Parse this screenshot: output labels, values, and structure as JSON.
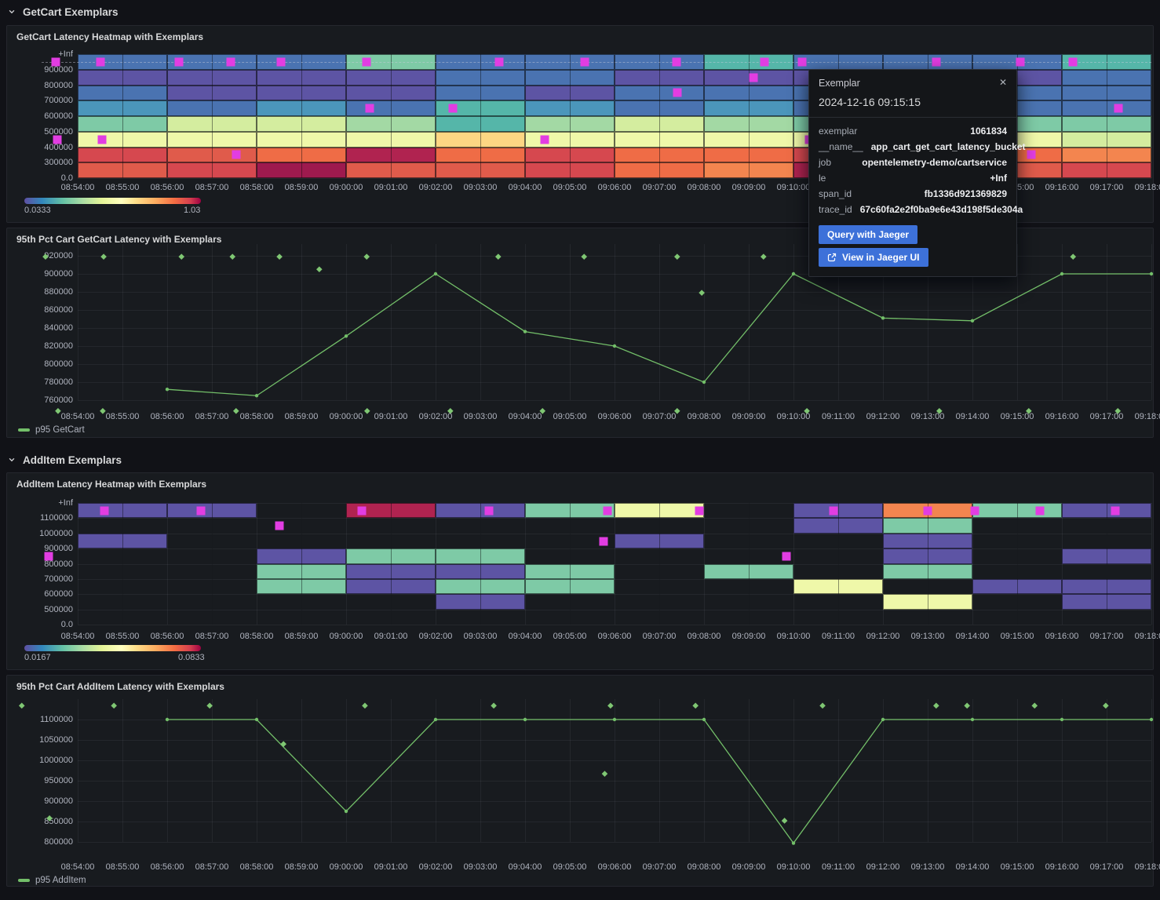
{
  "sections": [
    {
      "title": "GetCart Exemplars"
    },
    {
      "title": "AddItem Exemplars"
    }
  ],
  "colors": {
    "accent_blue": "#3d71d9",
    "exemplar_magenta": "#e23de2",
    "series_green": "#73bf69",
    "diamond_green": "#7fc773"
  },
  "palette": {
    "purple": "#5d54a4",
    "blue": "#4a73b1",
    "steel": "#4b96bb",
    "teal": "#55b6a9",
    "green": "#7ecaa6",
    "lightgreen": "#a3d9a4",
    "yellowgreen": "#d4ed9f",
    "paleyellow": "#eff8a9",
    "amber": "#fdd683",
    "lightorange": "#f3854f",
    "orange": "#ef6c46",
    "redorange": "#e05b4b",
    "red": "#d6484f",
    "crimson": "#b02350",
    "darkcrimson": "#9e1a4e"
  },
  "time_ticks": [
    "08:54:00",
    "08:55:00",
    "08:56:00",
    "08:57:00",
    "08:58:00",
    "08:59:00",
    "09:00:00",
    "09:01:00",
    "09:02:00",
    "09:03:00",
    "09:04:00",
    "09:05:00",
    "09:06:00",
    "09:07:00",
    "09:08:00",
    "09:09:00",
    "09:10:00",
    "09:11:00",
    "09:12:00",
    "09:13:00",
    "09:14:00",
    "09:15:00",
    "09:16:00",
    "09:17:00",
    "09:18:00"
  ],
  "heatmap1": {
    "title": "GetCart Latency Heatmap with Exemplars",
    "y_ticks": [
      "+Inf",
      "900000",
      "800000",
      "700000",
      "600000",
      "500000",
      "400000",
      "300000",
      "0.0"
    ],
    "legend": {
      "min": "0.0333",
      "max": "1.03"
    },
    "rows": [
      {
        "band": "900000-+Inf",
        "colors": [
          "blue",
          "blue",
          "blue",
          "green",
          "blue",
          "blue",
          "blue",
          "teal",
          "blue",
          "blue",
          "blue",
          "teal"
        ]
      },
      {
        "band": "800000-900000",
        "colors": [
          "purple",
          "purple",
          "purple",
          "purple",
          "blue",
          "blue",
          "purple",
          "purple",
          "purple",
          "purple",
          "purple",
          "blue"
        ]
      },
      {
        "band": "700000-800000",
        "colors": [
          "blue",
          "purple",
          "purple",
          "purple",
          "blue",
          "purple",
          "blue",
          "blue",
          "blue",
          "blue",
          "blue",
          "blue"
        ]
      },
      {
        "band": "600000-700000",
        "colors": [
          "steel",
          "blue",
          "steel",
          "blue",
          "teal",
          "steel",
          "blue",
          "steel",
          "blue",
          "blue",
          "blue",
          "blue"
        ]
      },
      {
        "band": "500000-600000",
        "colors": [
          "green",
          "yellowgreen",
          "yellowgreen",
          "lightgreen",
          "teal",
          "lightgreen",
          "yellowgreen",
          "lightgreen",
          "green",
          "green",
          "green",
          "green"
        ]
      },
      {
        "band": "400000-500000",
        "colors": [
          "paleyellow",
          "paleyellow",
          "paleyellow",
          "paleyellow",
          "amber",
          "paleyellow",
          "paleyellow",
          "paleyellow",
          "paleyellow",
          "paleyellow",
          "paleyellow",
          "yellowgreen"
        ]
      },
      {
        "band": "300000-400000",
        "colors": [
          "red",
          "redorange",
          "orange",
          "crimson",
          "orange",
          "red",
          "orange",
          "orange",
          "red",
          "redorange",
          "orange",
          "lightorange"
        ]
      },
      {
        "band": "0-300000",
        "colors": [
          "redorange",
          "red",
          "darkcrimson",
          "redorange",
          "redorange",
          "red",
          "orange",
          "lightorange",
          "crimson",
          "red",
          "redorange",
          "red"
        ]
      }
    ],
    "markers": [
      {
        "m": -0.49,
        "r": 0
      },
      {
        "m": 0.51,
        "r": 0
      },
      {
        "m": 2.26,
        "r": 0
      },
      {
        "m": 3.42,
        "r": 0
      },
      {
        "m": 4.54,
        "r": 0
      },
      {
        "m": 6.46,
        "r": 0
      },
      {
        "m": 9.42,
        "r": 0
      },
      {
        "m": 11.33,
        "r": 0
      },
      {
        "m": 13.39,
        "r": 0
      },
      {
        "m": 15.35,
        "r": 0
      },
      {
        "m": 16.2,
        "r": 0
      },
      {
        "m": 19.19,
        "r": 0
      },
      {
        "m": 21.07,
        "r": 0
      },
      {
        "m": 22.25,
        "r": 0
      },
      {
        "m": 15.1,
        "r": 1
      },
      {
        "m": 13.4,
        "r": 2
      },
      {
        "m": 6.53,
        "r": 3
      },
      {
        "m": 8.39,
        "r": 3
      },
      {
        "m": 23.26,
        "r": 3
      },
      {
        "m": -0.45,
        "r": 5
      },
      {
        "m": 0.55,
        "r": 5
      },
      {
        "m": 10.44,
        "r": 5
      },
      {
        "m": 16.35,
        "r": 5
      },
      {
        "m": 3.54,
        "r": 6
      },
      {
        "m": 21.32,
        "r": 6
      }
    ]
  },
  "line1": {
    "title": "95th Pct Cart GetCart Latency with Exemplars",
    "legend": "p95 GetCart",
    "y_ticks": [
      "920000",
      "900000",
      "880000",
      "860000",
      "840000",
      "820000",
      "800000",
      "780000",
      "760000"
    ],
    "points": [
      [
        2,
        772000
      ],
      [
        4,
        765000
      ],
      [
        6,
        831000
      ],
      [
        8,
        900000
      ],
      [
        10,
        836000
      ],
      [
        12,
        820000
      ],
      [
        14,
        780000
      ],
      [
        16,
        900000
      ],
      [
        18,
        851000
      ],
      [
        20,
        848000
      ],
      [
        22,
        900000
      ],
      [
        24,
        900000
      ]
    ],
    "diamonds": [
      [
        -0.72,
        919000
      ],
      [
        0.58,
        919000
      ],
      [
        2.32,
        919000
      ],
      [
        3.46,
        919000
      ],
      [
        4.51,
        919000
      ],
      [
        6.46,
        919000
      ],
      [
        9.4,
        919000
      ],
      [
        11.32,
        919000
      ],
      [
        13.4,
        919000
      ],
      [
        15.33,
        919000
      ],
      [
        22.25,
        919000
      ],
      [
        5.4,
        905000
      ],
      [
        13.95,
        879000
      ],
      [
        -0.44,
        748000
      ],
      [
        0.56,
        748000
      ],
      [
        3.54,
        748000
      ],
      [
        6.47,
        748000
      ],
      [
        8.33,
        748000
      ],
      [
        10.39,
        748000
      ],
      [
        13.4,
        748000
      ],
      [
        16.3,
        748000
      ],
      [
        19.26,
        748000
      ],
      [
        21.26,
        748000
      ],
      [
        23.25,
        748000
      ]
    ]
  },
  "heatmap2": {
    "title": "AddItem Latency Heatmap with Exemplars",
    "y_ticks": [
      "+Inf",
      "1100000",
      "1000000",
      "900000",
      "800000",
      "700000",
      "600000",
      "500000",
      "0.0"
    ],
    "legend": {
      "min": "0.0167",
      "max": "0.0833"
    },
    "rows": [
      {
        "band": "1100000-+Inf",
        "colors": [
          "purple",
          "purple",
          null,
          "crimson",
          "purple",
          "green",
          "paleyellow",
          null,
          "purple",
          "lightorange",
          "green",
          "purple"
        ]
      },
      {
        "band": "1000000-1100000",
        "colors": [
          null,
          null,
          null,
          null,
          null,
          null,
          null,
          null,
          "purple",
          "green",
          null,
          null
        ]
      },
      {
        "band": "900000-1000000",
        "colors": [
          "purple",
          null,
          null,
          null,
          null,
          null,
          "purple",
          null,
          null,
          "purple",
          null,
          null
        ]
      },
      {
        "band": "800000-900000",
        "colors": [
          null,
          null,
          "purple",
          "green",
          "green",
          null,
          null,
          null,
          null,
          "purple",
          null,
          "purple"
        ]
      },
      {
        "band": "700000-800000",
        "colors": [
          null,
          null,
          "green",
          "purple",
          "purple",
          "green",
          null,
          "green",
          null,
          "green",
          null,
          null
        ]
      },
      {
        "band": "600000-700000",
        "colors": [
          null,
          null,
          "green",
          "purple",
          "green",
          "green",
          null,
          null,
          "paleyellow",
          null,
          "purple",
          "purple"
        ]
      },
      {
        "band": "500000-600000",
        "colors": [
          null,
          null,
          null,
          null,
          "purple",
          null,
          null,
          null,
          null,
          "paleyellow",
          null,
          "purple"
        ]
      },
      {
        "band": "0-500000",
        "colors": [
          null,
          null,
          null,
          null,
          null,
          null,
          null,
          null,
          null,
          null,
          null,
          null
        ]
      }
    ],
    "markers": [
      {
        "m": 0.6,
        "r": 0
      },
      {
        "m": 2.75,
        "r": 0
      },
      {
        "m": 6.35,
        "r": 0
      },
      {
        "m": 9.2,
        "r": 0
      },
      {
        "m": 11.85,
        "r": 0
      },
      {
        "m": 13.9,
        "r": 0
      },
      {
        "m": 16.9,
        "r": 0
      },
      {
        "m": 19.0,
        "r": 0
      },
      {
        "m": 20.05,
        "r": 0
      },
      {
        "m": 21.5,
        "r": 0
      },
      {
        "m": 23.2,
        "r": 0
      },
      {
        "m": 4.5,
        "r": 1
      },
      {
        "m": 11.75,
        "r": 2
      },
      {
        "m": -0.65,
        "r": 3
      },
      {
        "m": 15.85,
        "r": 3
      }
    ]
  },
  "line2": {
    "title": "95th Pct Cart AddItem Latency with Exemplars",
    "legend": "p95 AddItem",
    "y_ticks": [
      "1100000",
      "1050000",
      "1000000",
      "950000",
      "900000",
      "850000",
      "800000"
    ],
    "points": [
      [
        2,
        1100000
      ],
      [
        4,
        1100000
      ],
      [
        6,
        875000
      ],
      [
        8,
        1100000
      ],
      [
        10,
        1100000
      ],
      [
        12,
        1100000
      ],
      [
        14,
        1100000
      ],
      [
        16,
        797000
      ],
      [
        18,
        1100000
      ],
      [
        20,
        1100000
      ],
      [
        22,
        1100000
      ],
      [
        24,
        1100000
      ]
    ],
    "diamonds": [
      [
        -1.25,
        1134000
      ],
      [
        0.81,
        1134000
      ],
      [
        2.95,
        1134000
      ],
      [
        6.42,
        1134000
      ],
      [
        9.3,
        1134000
      ],
      [
        11.91,
        1134000
      ],
      [
        13.81,
        1134000
      ],
      [
        16.65,
        1134000
      ],
      [
        19.19,
        1134000
      ],
      [
        19.88,
        1134000
      ],
      [
        21.39,
        1134000
      ],
      [
        22.98,
        1134000
      ],
      [
        -0.63,
        858000
      ],
      [
        4.6,
        1040000
      ],
      [
        11.78,
        967000
      ],
      [
        15.8,
        852000
      ]
    ]
  },
  "tooltip": {
    "title": "Exemplar",
    "close": "✕",
    "timestamp": "2024-12-16 09:15:15",
    "rows": [
      {
        "label": "exemplar",
        "value": "1061834"
      },
      {
        "label": "__name__",
        "value": "app_cart_get_cart_latency_bucket"
      },
      {
        "label": "job",
        "value": "opentelemetry-demo/cartservice"
      },
      {
        "label": "le",
        "value": "+Inf"
      },
      {
        "label": "span_id",
        "value": "fb1336d921369829"
      },
      {
        "label": "trace_id",
        "value": "67c60fa2e2f0ba9e6e43d198f5de304a"
      }
    ],
    "buttons": [
      {
        "label": "Query with Jaeger"
      },
      {
        "label": "View in Jaeger UI",
        "icon": "external-link-icon"
      }
    ]
  },
  "chart_data": [
    {
      "type": "heatmap",
      "title": "GetCart Latency Heatmap with Exemplars",
      "x_start": "08:54:00",
      "x_end": "09:18:00",
      "bucket_seconds": 120,
      "ylabel_buckets": [
        "+Inf",
        "900000",
        "800000",
        "700000",
        "600000",
        "500000",
        "400000",
        "300000",
        "0.0"
      ],
      "color_scale_min": 0.0333,
      "color_scale_max": 1.03,
      "cells": "see heatmap1.rows (color keys per 2-min column, top band to bottom)"
    },
    {
      "type": "line",
      "title": "95th Pct Cart GetCart Latency with Exemplars",
      "series": "p95 GetCart",
      "ylim": [
        760000,
        920000
      ],
      "x": [
        "08:56:00",
        "08:58:00",
        "09:00:00",
        "09:02:00",
        "09:04:00",
        "09:06:00",
        "09:08:00",
        "09:10:00",
        "09:12:00",
        "09:14:00",
        "09:16:00",
        "09:18:00"
      ],
      "values": [
        772000,
        765000,
        831000,
        900000,
        836000,
        820000,
        780000,
        900000,
        851000,
        848000,
        900000,
        900000
      ]
    },
    {
      "type": "heatmap",
      "title": "AddItem Latency Heatmap with Exemplars",
      "x_start": "08:54:00",
      "x_end": "09:18:00",
      "bucket_seconds": 120,
      "ylabel_buckets": [
        "+Inf",
        "1100000",
        "1000000",
        "900000",
        "800000",
        "700000",
        "600000",
        "500000",
        "0.0"
      ],
      "color_scale_min": 0.0167,
      "color_scale_max": 0.0833,
      "cells": "see heatmap2.rows (color keys per 2-min column, top band to bottom)"
    },
    {
      "type": "line",
      "title": "95th Pct Cart AddItem Latency with Exemplars",
      "series": "p95 AddItem",
      "ylim": [
        800000,
        1100000
      ],
      "x": [
        "08:56:00",
        "08:58:00",
        "09:00:00",
        "09:02:00",
        "09:04:00",
        "09:06:00",
        "09:08:00",
        "09:10:00",
        "09:12:00",
        "09:14:00",
        "09:16:00",
        "09:18:00"
      ],
      "values": [
        1100000,
        1100000,
        875000,
        1100000,
        1100000,
        1100000,
        1100000,
        797000,
        1100000,
        1100000,
        1100000,
        1100000
      ]
    }
  ]
}
